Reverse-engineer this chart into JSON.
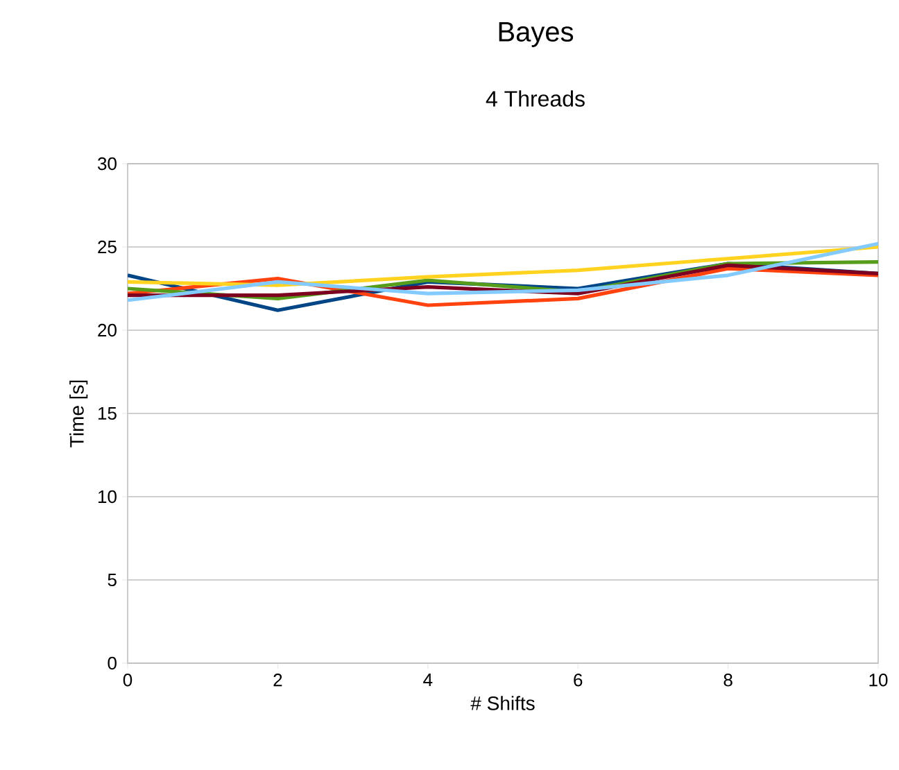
{
  "chart_data": {
    "type": "line",
    "title": "Bayes",
    "subtitle": "4 Threads",
    "xlabel": "# Shifts",
    "ylabel": "Time [s]",
    "x": [
      0,
      2,
      4,
      6,
      8,
      10
    ],
    "series": [
      {
        "color": "#004586",
        "values": [
          23.3,
          21.2,
          22.9,
          22.5,
          24.0,
          23.4
        ]
      },
      {
        "color": "#ff420e",
        "values": [
          22.2,
          23.1,
          21.5,
          21.9,
          23.7,
          23.3
        ]
      },
      {
        "color": "#579d1c",
        "values": [
          22.5,
          21.9,
          23.0,
          22.3,
          24.0,
          24.1
        ]
      },
      {
        "color": "#7e0021",
        "values": [
          22.1,
          22.1,
          22.6,
          22.2,
          23.9,
          23.4
        ]
      },
      {
        "color": "#ffd320",
        "values": [
          22.9,
          22.7,
          23.2,
          23.6,
          24.3,
          25.0
        ]
      },
      {
        "color": "#83caff",
        "values": [
          21.8,
          22.9,
          22.2,
          22.4,
          23.3,
          25.2
        ]
      }
    ],
    "xlim": [
      0,
      10
    ],
    "ylim": [
      0,
      30
    ],
    "xticks": [
      0,
      2,
      4,
      6,
      8,
      10
    ],
    "yticks": [
      0,
      5,
      10,
      15,
      20,
      25,
      30
    ],
    "grid": "y",
    "marker": "none",
    "line_style": "solid"
  }
}
